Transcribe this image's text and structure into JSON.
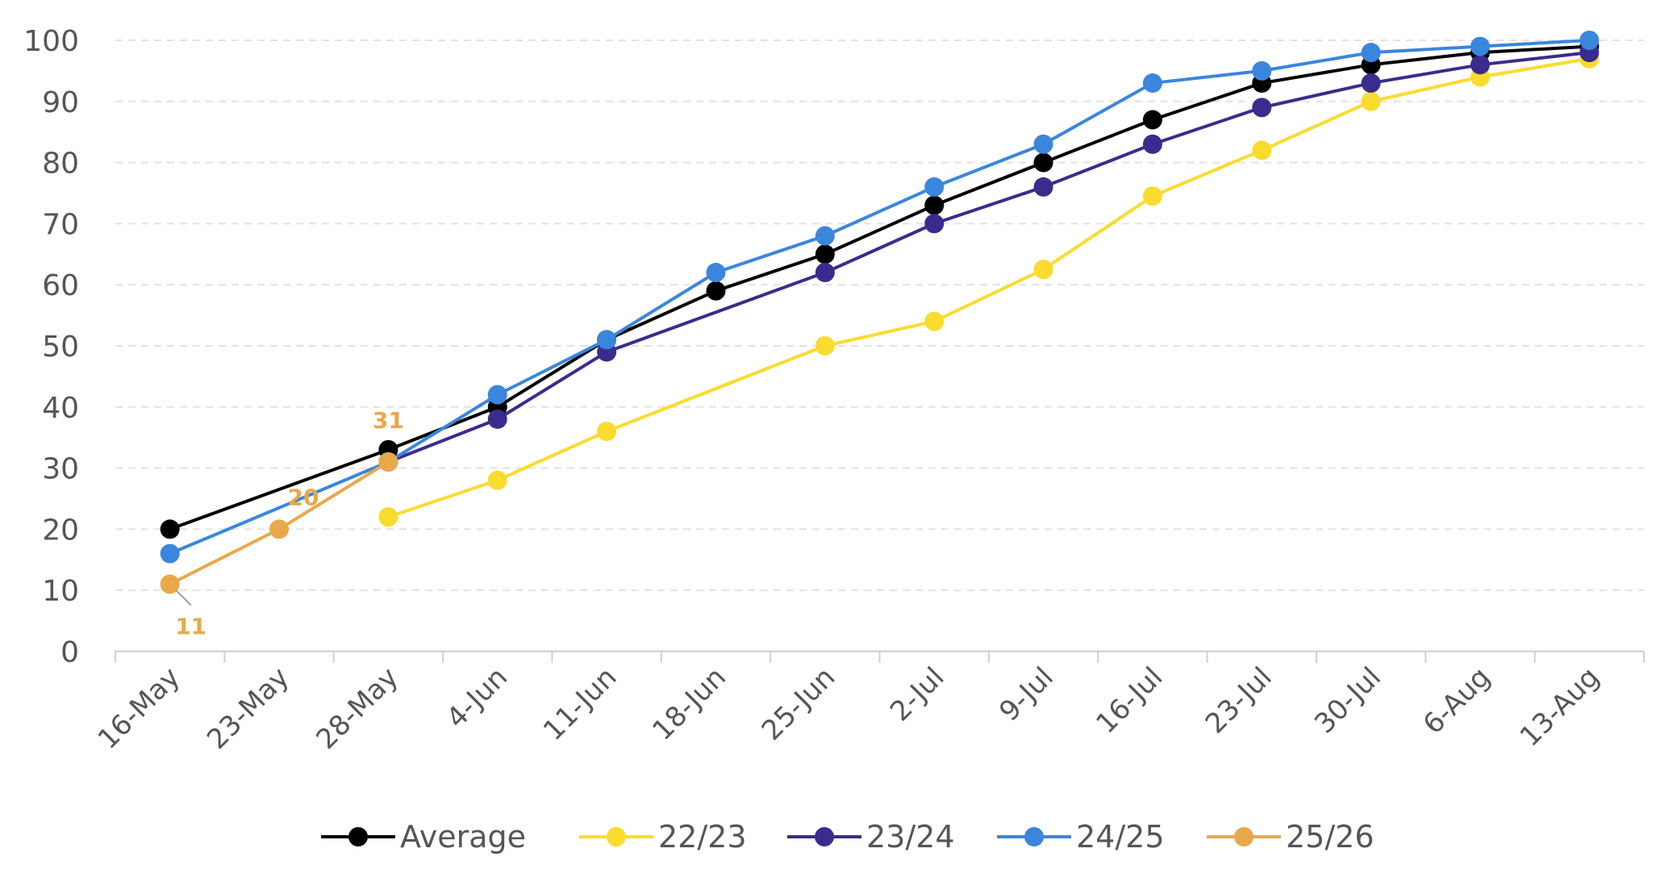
{
  "chart_data": {
    "type": "line",
    "title": "",
    "xlabel": "",
    "ylabel": "",
    "ylim": [
      0,
      100
    ],
    "yticks": [
      0,
      10,
      20,
      30,
      40,
      50,
      60,
      70,
      80,
      90,
      100
    ],
    "grid": "horizontal dashed",
    "legend_position": "bottom",
    "categories": [
      "16-May",
      "23-May",
      "28-May",
      "4-Jun",
      "11-Jun",
      "18-Jun",
      "25-Jun",
      "2-Jul",
      "9-Jul",
      "16-Jul",
      "23-Jul",
      "30-Jul",
      "6-Aug",
      "13-Aug"
    ],
    "series": [
      {
        "name": "Average",
        "color": "#000000",
        "values": [
          20,
          null,
          33,
          40,
          51,
          59,
          65,
          73,
          80,
          87,
          93,
          96,
          98,
          99
        ]
      },
      {
        "name": "22/23",
        "color": "#F9DC2E",
        "values": [
          null,
          null,
          22,
          28,
          36,
          null,
          50,
          54,
          62.5,
          74.5,
          82,
          90,
          94,
          97
        ]
      },
      {
        "name": "23/24",
        "color": "#3A2C8E",
        "values": [
          null,
          null,
          31,
          38,
          49,
          null,
          62,
          70,
          76,
          83,
          89,
          93,
          96,
          98
        ]
      },
      {
        "name": "24/25",
        "color": "#3A86DD",
        "values": [
          16,
          null,
          31,
          42,
          51,
          62,
          68,
          76,
          83,
          93,
          95,
          98,
          99,
          100
        ]
      },
      {
        "name": "25/26",
        "color": "#E9A84A",
        "values": [
          11,
          20,
          31,
          null,
          null,
          null,
          null,
          null,
          null,
          null,
          null,
          null,
          null,
          null
        ]
      }
    ],
    "annotations": [
      {
        "series": "25/26",
        "category": "16-May",
        "text": "11"
      },
      {
        "series": "25/26",
        "category": "23-May",
        "text": "20"
      },
      {
        "series": "25/26",
        "category": "28-May",
        "text": "31"
      }
    ]
  }
}
